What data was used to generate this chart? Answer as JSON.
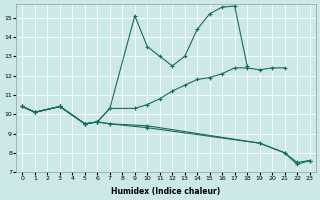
{
  "xlabel": "Humidex (Indice chaleur)",
  "xlim": [
    -0.5,
    23.5
  ],
  "ylim": [
    7,
    15.7
  ],
  "yticks": [
    7,
    8,
    9,
    10,
    11,
    12,
    13,
    14,
    15
  ],
  "xticks": [
    0,
    1,
    2,
    3,
    4,
    5,
    6,
    7,
    8,
    9,
    10,
    11,
    12,
    13,
    14,
    15,
    16,
    17,
    18,
    19,
    20,
    21,
    22,
    23
  ],
  "background_color": "#cce8e8",
  "grid_color": "#ffffff",
  "line_color": "#1a6b5a",
  "curve1": {
    "x": [
      0,
      1,
      3,
      5,
      6,
      7,
      9,
      10,
      11,
      12,
      13,
      14,
      15,
      16,
      17,
      18
    ],
    "y": [
      10.4,
      10.1,
      10.4,
      9.5,
      9.6,
      10.3,
      15.1,
      13.5,
      13.0,
      12.5,
      13.0,
      14.4,
      15.2,
      15.55,
      15.6,
      12.5
    ]
  },
  "curve2": {
    "x": [
      0,
      1,
      3,
      5,
      6,
      7,
      9,
      10,
      11,
      12,
      13,
      14,
      15,
      16,
      17,
      18,
      19,
      20,
      21
    ],
    "y": [
      10.4,
      10.1,
      10.4,
      9.5,
      9.6,
      10.3,
      10.3,
      10.5,
      10.8,
      11.2,
      11.5,
      11.8,
      11.9,
      12.1,
      12.4,
      12.4,
      12.3,
      12.4,
      12.4
    ]
  },
  "curve3": {
    "x": [
      0,
      1,
      3,
      5,
      6,
      7,
      10,
      19,
      21,
      22,
      23
    ],
    "y": [
      10.4,
      10.1,
      10.4,
      9.5,
      9.6,
      9.5,
      9.4,
      8.5,
      8.0,
      7.4,
      7.6
    ]
  },
  "curve4": {
    "x": [
      0,
      1,
      3,
      5,
      6,
      7,
      10,
      19,
      21,
      22,
      23
    ],
    "y": [
      10.4,
      10.1,
      10.4,
      9.5,
      9.6,
      9.5,
      9.3,
      8.5,
      8.0,
      7.5,
      7.6
    ]
  }
}
